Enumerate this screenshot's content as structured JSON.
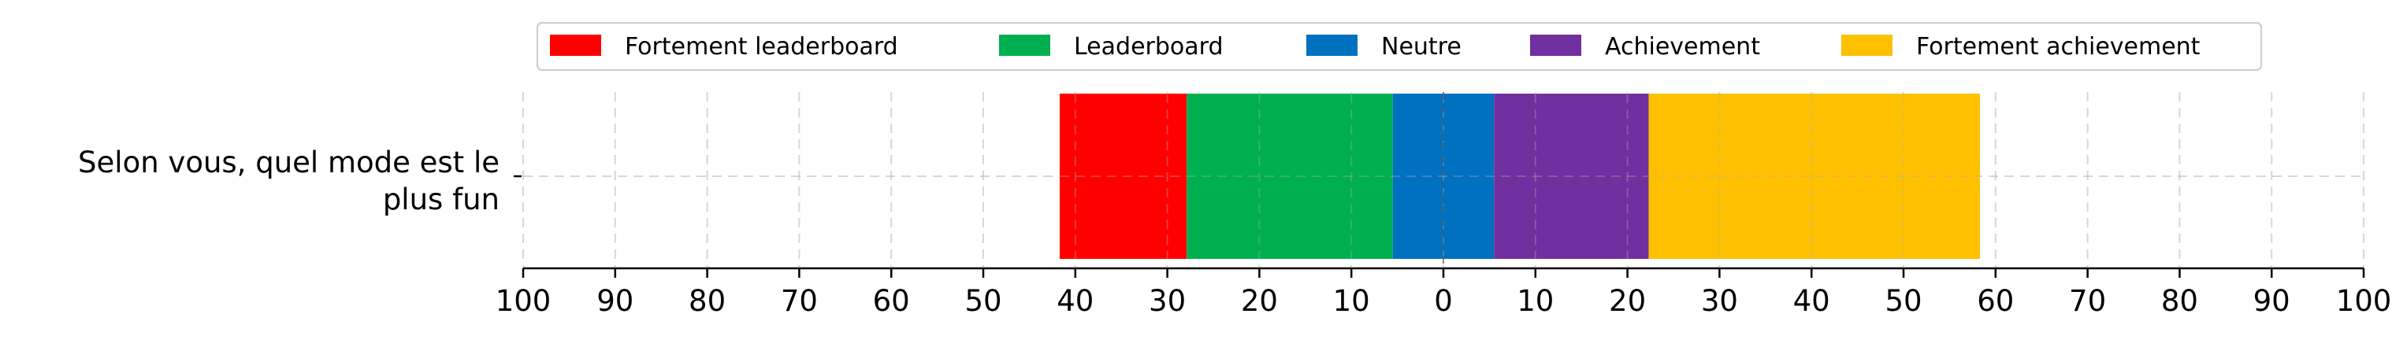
{
  "chart_data": {
    "type": "bar",
    "orientation": "horizontal",
    "stacked": true,
    "diverging": true,
    "categories": [
      "Selon vous, quel mode est le\nplus fun"
    ],
    "series": [
      {
        "name": "Fortement leaderboard",
        "values": [
          13.8
        ],
        "color": "#ff0000"
      },
      {
        "name": "Leaderboard",
        "values": [
          22.4
        ],
        "color": "#00b050"
      },
      {
        "name": "Neutre",
        "values": [
          11.0
        ],
        "color": "#0070c0"
      },
      {
        "name": "Achievement",
        "values": [
          16.8
        ],
        "color": "#7030a0"
      },
      {
        "name": "Fortement achievement",
        "values": [
          36.0
        ],
        "color": "#ffc000"
      }
    ],
    "xlim": [
      -100,
      100
    ],
    "x_ticks": [
      -100,
      -90,
      -80,
      -70,
      -60,
      -50,
      -40,
      -30,
      -20,
      -10,
      0,
      10,
      20,
      30,
      40,
      50,
      60,
      70,
      80,
      90,
      100
    ],
    "x_tick_labels": [
      "100",
      "90",
      "80",
      "70",
      "60",
      "50",
      "40",
      "30",
      "20",
      "10",
      "0",
      "10",
      "20",
      "30",
      "40",
      "50",
      "60",
      "70",
      "80",
      "90",
      "100"
    ],
    "title": "",
    "xlabel": "",
    "ylabel": "",
    "grid": true,
    "legend_position": "top"
  }
}
